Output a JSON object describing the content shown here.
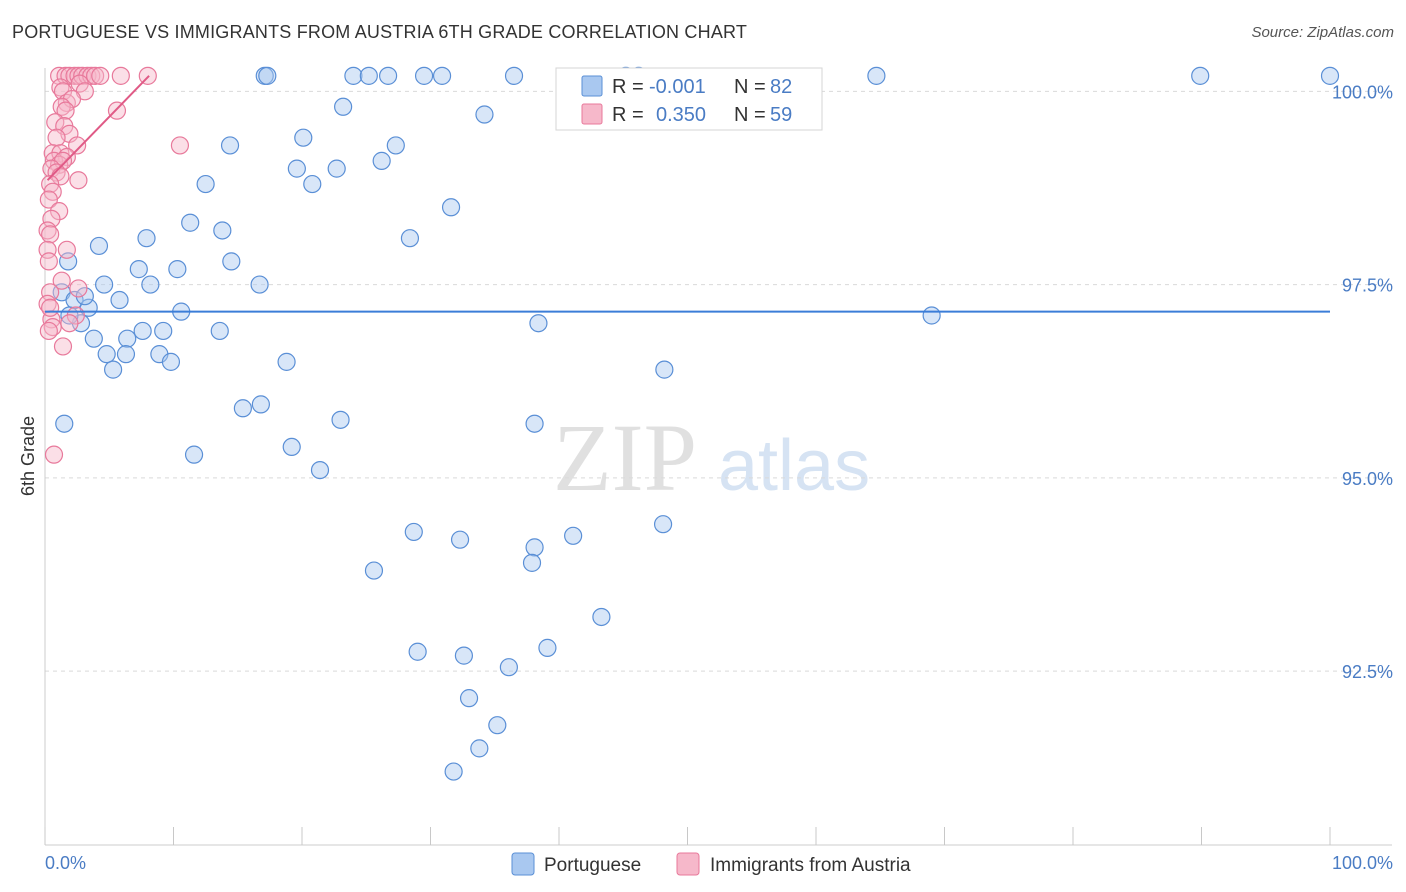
{
  "header": {
    "title": "PORTUGUESE VS IMMIGRANTS FROM AUSTRIA 6TH GRADE CORRELATION CHART",
    "source": "Source: ZipAtlas.com"
  },
  "watermark": {
    "zip": "ZIP",
    "atlas": "atlas"
  },
  "colors": {
    "blue_fill": "#a9c8f0",
    "blue_stroke": "#5a8fd6",
    "blue_line": "#3b7dd8",
    "pink_fill": "#f6b8ca",
    "pink_stroke": "#e8799b",
    "pink_line": "#e05a86",
    "tick_text": "#4a7cc4",
    "grid": "#d9d9d9"
  },
  "legend": {
    "r_label": "R =",
    "n_label": "N =",
    "entries": [
      {
        "r": "-0.001",
        "n": "82"
      },
      {
        "r": "0.350",
        "n": "59"
      }
    ]
  },
  "bottom_legend": [
    "Portuguese",
    "Immigrants from Austria"
  ],
  "chart_data": {
    "type": "scatter",
    "title": "PORTUGUESE VS IMMIGRANTS FROM AUSTRIA 6TH GRADE CORRELATION CHART",
    "xlabel": "",
    "ylabel": "6th Grade",
    "xlim": [
      0,
      100
    ],
    "ylim": [
      90.25,
      100.25
    ],
    "x_tick_labels": [
      "0.0%",
      "100.0%"
    ],
    "y_ticks": [
      100.0,
      97.5,
      95.0,
      92.5
    ],
    "y_tick_labels": [
      "100.0%",
      "97.5%",
      "95.0%",
      "92.5%"
    ],
    "grid": true,
    "series": [
      {
        "name": "Portuguese",
        "r": -0.001,
        "n": 82,
        "trend": [
          [
            0,
            97.15
          ],
          [
            100,
            97.15
          ]
        ],
        "points": [
          [
            17.1,
            100.2
          ],
          [
            17.3,
            100.2
          ],
          [
            24.0,
            100.2
          ],
          [
            25.2,
            100.2
          ],
          [
            26.7,
            100.2
          ],
          [
            29.5,
            100.2
          ],
          [
            30.9,
            100.2
          ],
          [
            36.5,
            100.2
          ],
          [
            45.2,
            100.2
          ],
          [
            64.7,
            100.2
          ],
          [
            89.9,
            100.2
          ],
          [
            100,
            100.2
          ],
          [
            46.2,
            100.2
          ],
          [
            23.2,
            99.8
          ],
          [
            34.2,
            99.7
          ],
          [
            20.1,
            99.4
          ],
          [
            14.4,
            99.3
          ],
          [
            27.3,
            99.3
          ],
          [
            26.2,
            99.1
          ],
          [
            19.6,
            99.0
          ],
          [
            22.7,
            99.0
          ],
          [
            12.5,
            98.8
          ],
          [
            20.8,
            98.8
          ],
          [
            31.6,
            98.5
          ],
          [
            11.3,
            98.3
          ],
          [
            13.8,
            98.2
          ],
          [
            28.4,
            98.1
          ],
          [
            7.9,
            98.1
          ],
          [
            4.2,
            98.0
          ],
          [
            14.5,
            97.8
          ],
          [
            1.8,
            97.8
          ],
          [
            7.3,
            97.7
          ],
          [
            10.3,
            97.7
          ],
          [
            8.2,
            97.5
          ],
          [
            16.7,
            97.5
          ],
          [
            1.3,
            97.4
          ],
          [
            2.3,
            97.3
          ],
          [
            5.8,
            97.3
          ],
          [
            3.4,
            97.2
          ],
          [
            10.6,
            97.15
          ],
          [
            2.8,
            97.0
          ],
          [
            38.4,
            97.0
          ],
          [
            69.0,
            97.1
          ],
          [
            13.6,
            96.9
          ],
          [
            9.2,
            96.9
          ],
          [
            3.8,
            96.8
          ],
          [
            6.4,
            96.8
          ],
          [
            4.8,
            96.6
          ],
          [
            6.3,
            96.6
          ],
          [
            8.9,
            96.6
          ],
          [
            9.8,
            96.5
          ],
          [
            18.8,
            96.5
          ],
          [
            5.3,
            96.4
          ],
          [
            48.2,
            96.4
          ],
          [
            15.4,
            95.9
          ],
          [
            16.8,
            95.95
          ],
          [
            23.0,
            95.75
          ],
          [
            1.5,
            95.7
          ],
          [
            38.1,
            95.7
          ],
          [
            11.6,
            95.3
          ],
          [
            19.2,
            95.4
          ],
          [
            21.4,
            95.1
          ],
          [
            48.1,
            94.4
          ],
          [
            28.7,
            94.3
          ],
          [
            32.3,
            94.2
          ],
          [
            41.1,
            94.25
          ],
          [
            38.1,
            94.1
          ],
          [
            37.9,
            93.9
          ],
          [
            25.6,
            93.8
          ],
          [
            43.3,
            93.2
          ],
          [
            29.0,
            92.75
          ],
          [
            32.6,
            92.7
          ],
          [
            39.1,
            92.8
          ],
          [
            36.1,
            92.55
          ],
          [
            33.0,
            92.15
          ],
          [
            35.2,
            91.8
          ],
          [
            33.8,
            91.5
          ],
          [
            31.8,
            91.2
          ],
          [
            4.6,
            97.5
          ],
          [
            3.1,
            97.35
          ],
          [
            7.6,
            96.9
          ],
          [
            1.9,
            97.1
          ]
        ]
      },
      {
        "name": "Immigrants from Austria",
        "r": 0.35,
        "n": 59,
        "trend": [
          [
            0.2,
            98.85
          ],
          [
            8.1,
            100.2
          ]
        ],
        "points": [
          [
            1.1,
            100.2
          ],
          [
            1.6,
            100.2
          ],
          [
            1.9,
            100.2
          ],
          [
            2.3,
            100.2
          ],
          [
            2.6,
            100.2
          ],
          [
            2.9,
            100.2
          ],
          [
            3.3,
            100.2
          ],
          [
            3.6,
            100.2
          ],
          [
            3.9,
            100.2
          ],
          [
            4.3,
            100.2
          ],
          [
            5.9,
            100.2
          ],
          [
            8.0,
            100.2
          ],
          [
            2.7,
            100.1
          ],
          [
            1.2,
            100.05
          ],
          [
            3.1,
            100.0
          ],
          [
            1.4,
            100.0
          ],
          [
            1.7,
            99.85
          ],
          [
            2.1,
            99.9
          ],
          [
            1.3,
            99.8
          ],
          [
            1.6,
            99.75
          ],
          [
            5.6,
            99.75
          ],
          [
            0.8,
            99.6
          ],
          [
            1.5,
            99.55
          ],
          [
            1.9,
            99.45
          ],
          [
            0.9,
            99.4
          ],
          [
            2.5,
            99.3
          ],
          [
            10.5,
            99.3
          ],
          [
            0.6,
            99.2
          ],
          [
            1.2,
            99.2
          ],
          [
            1.7,
            99.15
          ],
          [
            0.7,
            99.1
          ],
          [
            1.1,
            99.05
          ],
          [
            1.4,
            99.1
          ],
          [
            0.5,
            99.0
          ],
          [
            0.9,
            98.95
          ],
          [
            1.2,
            98.9
          ],
          [
            0.4,
            98.8
          ],
          [
            2.6,
            98.85
          ],
          [
            0.6,
            98.7
          ],
          [
            0.3,
            98.6
          ],
          [
            1.1,
            98.45
          ],
          [
            0.5,
            98.35
          ],
          [
            0.2,
            98.2
          ],
          [
            0.4,
            98.15
          ],
          [
            0.2,
            97.95
          ],
          [
            1.7,
            97.95
          ],
          [
            0.3,
            97.8
          ],
          [
            2.6,
            97.45
          ],
          [
            1.3,
            97.55
          ],
          [
            0.4,
            97.4
          ],
          [
            0.2,
            97.25
          ],
          [
            0.5,
            97.05
          ],
          [
            2.4,
            97.1
          ],
          [
            1.9,
            97.0
          ],
          [
            0.6,
            96.95
          ],
          [
            0.3,
            96.9
          ],
          [
            1.4,
            96.7
          ],
          [
            0.7,
            95.3
          ],
          [
            0.4,
            97.2
          ]
        ]
      }
    ]
  }
}
